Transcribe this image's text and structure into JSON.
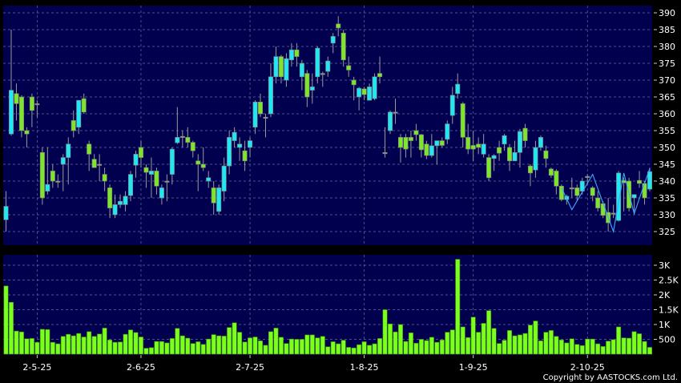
{
  "chart_data": [
    {
      "type": "candlestick",
      "panel": "price",
      "ylim": [
        322,
        392
      ],
      "yticks": [
        325,
        330,
        335,
        340,
        345,
        350,
        355,
        360,
        365,
        370,
        375,
        380,
        385,
        390
      ],
      "grid": true,
      "colors": {
        "up": "#22e6f2",
        "down": "#7ee52a",
        "background": "#00004f",
        "overlay": "#3fa8ff"
      },
      "candles_ohlc": [
        [
          328.5,
          337,
          325,
          332.5
        ],
        [
          354,
          385,
          353.5,
          367
        ],
        [
          366,
          369,
          358,
          363
        ],
        [
          365,
          365.5,
          353,
          355
        ],
        [
          355,
          356,
          350,
          354
        ],
        [
          365,
          366,
          356,
          361
        ],
        [
          363,
          364,
          359,
          363
        ],
        [
          348.5,
          350,
          333,
          335
        ],
        [
          337,
          350,
          336,
          339
        ],
        [
          343,
          345,
          338,
          340
        ],
        [
          340,
          342,
          338,
          340
        ],
        [
          345,
          348,
          337,
          347
        ],
        [
          347,
          353,
          339,
          351
        ],
        [
          358,
          361,
          353,
          355
        ],
        [
          356,
          363,
          354,
          364
        ],
        [
          364.5,
          366,
          360,
          360.5
        ],
        [
          351,
          352,
          343,
          348
        ],
        [
          346.5,
          348,
          344,
          344
        ],
        [
          345,
          348,
          340,
          345
        ],
        [
          342,
          344,
          337,
          340
        ],
        [
          338,
          339,
          329,
          332
        ],
        [
          330,
          336,
          329,
          333
        ],
        [
          333,
          336,
          332,
          334
        ],
        [
          333,
          337,
          331,
          335.5
        ],
        [
          335.7,
          343,
          334,
          342
        ],
        [
          344.7,
          349,
          341,
          348
        ],
        [
          350,
          352,
          344,
          347
        ],
        [
          344,
          345,
          338,
          342.6
        ],
        [
          342,
          347,
          335,
          343
        ],
        [
          343,
          344,
          336,
          338.5
        ],
        [
          335,
          339,
          333,
          338
        ],
        [
          340,
          342,
          334,
          340
        ],
        [
          342,
          350,
          339,
          349.5
        ],
        [
          351.4,
          362,
          351,
          353
        ],
        [
          353.3,
          355,
          350,
          353.3
        ],
        [
          353,
          356,
          350,
          351.5
        ],
        [
          351.5,
          352,
          347,
          349
        ],
        [
          346,
          348,
          337,
          345
        ],
        [
          345,
          350,
          343,
          344
        ],
        [
          340,
          343,
          338,
          341
        ],
        [
          338,
          340,
          330,
          333.5
        ],
        [
          331,
          339,
          330,
          338
        ],
        [
          337,
          347,
          334,
          344.5
        ],
        [
          344.5,
          355,
          342,
          353
        ],
        [
          352,
          356,
          350,
          354.5
        ],
        [
          350,
          353,
          346,
          351
        ],
        [
          349,
          352,
          343,
          346
        ],
        [
          350,
          353,
          347,
          352
        ],
        [
          356,
          364,
          354,
          363.5
        ],
        [
          363.5,
          366,
          359,
          360
        ],
        [
          359,
          360,
          353,
          359
        ],
        [
          360,
          375,
          359,
          371
        ],
        [
          371,
          380,
          369,
          377
        ],
        [
          377,
          377.5,
          369,
          371
        ],
        [
          370,
          378,
          368,
          376.4
        ],
        [
          376,
          381,
          374,
          379
        ],
        [
          379,
          381,
          374,
          377
        ],
        [
          371,
          376,
          367,
          375
        ],
        [
          372,
          373,
          362,
          365
        ],
        [
          367,
          372,
          363,
          368
        ],
        [
          371,
          380,
          369,
          379.5
        ],
        [
          372,
          372.5,
          368,
          372
        ],
        [
          372.6,
          377,
          371,
          375.7
        ],
        [
          381,
          384,
          378,
          383
        ],
        [
          386.7,
          389,
          383,
          385.5
        ],
        [
          384,
          385,
          374,
          376
        ],
        [
          374.3,
          377,
          371,
          373
        ],
        [
          370,
          371,
          364,
          368.6
        ],
        [
          365,
          368,
          361,
          367.6
        ],
        [
          367.4,
          368,
          364,
          365.7
        ],
        [
          364,
          369,
          364,
          368
        ],
        [
          364.5,
          372,
          364,
          371
        ],
        [
          372,
          377,
          369,
          371
        ],
        [
          348.5,
          356,
          347,
          348.5
        ],
        [
          355,
          361,
          354,
          360.5
        ],
        [
          360.5,
          364.5,
          357,
          360.5
        ],
        [
          353,
          354,
          345.5,
          350
        ],
        [
          353,
          354,
          347,
          349.5
        ],
        [
          353,
          355,
          347,
          352
        ],
        [
          355,
          357,
          352,
          353.8
        ],
        [
          353.8,
          354,
          347,
          349.3
        ],
        [
          351,
          352,
          346.5,
          347.6
        ],
        [
          347.6,
          354,
          347,
          350.5
        ],
        [
          350.5,
          352,
          345,
          352
        ],
        [
          352,
          353,
          350,
          350.6
        ],
        [
          352.4,
          358,
          351,
          357
        ],
        [
          359.5,
          368,
          357,
          365.5
        ],
        [
          366,
          372,
          364.5,
          368.8
        ],
        [
          363,
          363.5,
          350,
          353
        ],
        [
          353,
          357,
          348,
          349.5
        ],
        [
          350.6,
          355,
          346,
          349.5
        ],
        [
          351,
          353,
          348,
          350
        ],
        [
          348,
          354,
          347,
          351
        ],
        [
          347,
          348,
          340,
          341
        ],
        [
          346.7,
          348,
          343,
          347.6
        ],
        [
          350,
          352,
          346,
          348.3
        ],
        [
          351,
          354,
          349,
          353.5
        ],
        [
          350,
          351,
          343,
          346
        ],
        [
          346,
          352,
          346,
          348.5
        ],
        [
          348.5,
          355.5,
          344,
          354.7
        ],
        [
          355.7,
          357,
          350,
          352
        ],
        [
          344.5,
          345,
          338.5,
          342.4
        ],
        [
          343.3,
          352,
          341,
          350
        ],
        [
          350,
          353.5,
          349,
          353
        ],
        [
          349,
          350.5,
          344,
          346.7
        ],
        [
          343.6,
          344,
          341,
          341.7
        ],
        [
          343,
          343.5,
          336,
          338.5
        ],
        [
          338.5,
          339,
          334,
          334.5
        ],
        [
          334.5,
          336,
          333,
          335.5
        ],
        [
          338,
          341,
          335,
          338
        ],
        [
          338,
          339,
          334,
          335.7
        ],
        [
          337,
          341,
          336,
          340
        ],
        [
          341.4,
          342,
          339,
          341.4
        ],
        [
          338,
          338.5,
          334,
          335.7
        ],
        [
          335,
          337,
          331,
          332
        ],
        [
          333.3,
          334,
          329,
          329.8
        ],
        [
          330.7,
          335,
          325,
          327.6
        ],
        [
          330.5,
          333,
          329,
          330.5
        ],
        [
          328.3,
          343,
          328,
          342.4
        ],
        [
          340.2,
          341,
          331,
          339.5
        ],
        [
          340,
          341,
          331,
          332
        ],
        [
          335,
          336,
          331,
          336
        ],
        [
          340.2,
          343,
          338,
          339.3
        ],
        [
          339.3,
          340,
          333,
          335
        ],
        [
          337.6,
          344,
          337,
          342.8
        ]
      ],
      "overlay_line": {
        "candle_index": [
          107,
          109,
          113,
          117,
          119,
          121,
          124
        ],
        "values": [
          338,
          331.5,
          342,
          325,
          342.4,
          330.3,
          343.8
        ]
      }
    },
    {
      "type": "bar",
      "panel": "volume",
      "ylim": [
        0,
        3300
      ],
      "yticks": [
        500,
        1000,
        1500,
        2000,
        2500,
        3000
      ],
      "ytick_labels": [
        "500",
        "1K",
        "1.5K",
        "2K",
        "2.5K",
        "3K"
      ],
      "grid": true,
      "colors": {
        "bar": "#7cff1c",
        "background": "#00004f"
      },
      "values": [
        2300,
        1750,
        780,
        750,
        520,
        530,
        400,
        840,
        830,
        400,
        350,
        600,
        670,
        620,
        700,
        580,
        760,
        600,
        680,
        880,
        480,
        400,
        410,
        670,
        820,
        730,
        580,
        200,
        220,
        430,
        430,
        380,
        530,
        870,
        620,
        540,
        360,
        420,
        330,
        510,
        660,
        620,
        610,
        900,
        1060,
        740,
        410,
        550,
        580,
        450,
        300,
        760,
        880,
        570,
        360,
        510,
        500,
        500,
        650,
        650,
        550,
        600,
        250,
        420,
        350,
        470,
        230,
        210,
        320,
        420,
        300,
        350,
        530,
        1500,
        1020,
        750,
        1000,
        430,
        720,
        370,
        500,
        460,
        570,
        400,
        480,
        740,
        820,
        3200,
        920,
        560,
        1250,
        740,
        1040,
        1470,
        870,
        360,
        470,
        800,
        620,
        650,
        700,
        980,
        1120,
        450,
        740,
        800,
        600,
        480,
        380,
        520,
        330,
        290,
        510,
        510,
        350,
        260,
        440,
        490,
        920,
        550,
        540,
        760,
        690,
        430,
        230
      ]
    }
  ],
  "x_axis": {
    "labels": [
      "2-5-25",
      "2-6-25",
      "2-7-25",
      "1-8-25",
      "1-9-25",
      "2-10-25"
    ],
    "label_candle_index": [
      6,
      26,
      47,
      69,
      90,
      112
    ]
  },
  "copyright": "Copyright by AASTOCKS.com Ltd."
}
